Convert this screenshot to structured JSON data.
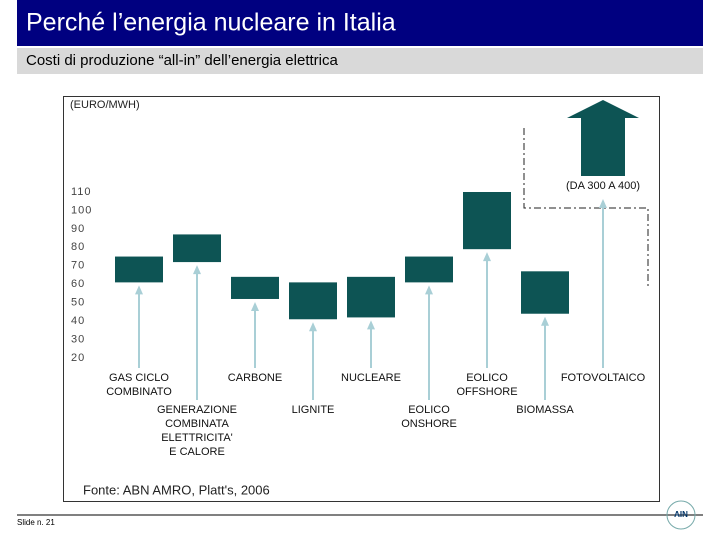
{
  "header": {
    "title": "Perché l’energia nucleare in Italia",
    "subtitle": "Costi di produzione “all-in” dell’energia elettrica"
  },
  "chart_data": {
    "type": "range-bar",
    "unit_label": "(EURO/MWH)",
    "categories": [
      [
        "GAS CICLO",
        "COMBINATO"
      ],
      [
        "GENERAZIONE",
        "COMBINATA",
        "ELETTRICITA'",
        "E CALORE"
      ],
      [
        "CARBONE"
      ],
      [
        "LIGNITE"
      ],
      [
        "NUCLEARE"
      ],
      [
        "EOLICO",
        "ONSHORE"
      ],
      [
        "EOLICO",
        "OFFSHORE"
      ],
      [
        "BIOMASSA"
      ],
      [
        "FOTOVOLTAICO"
      ]
    ],
    "ranges": [
      [
        61,
        75
      ],
      [
        72,
        87
      ],
      [
        52,
        64
      ],
      [
        41,
        61
      ],
      [
        42,
        64
      ],
      [
        61,
        75
      ],
      [
        79,
        110
      ],
      [
        44,
        67
      ],
      [
        300,
        400
      ]
    ],
    "annotation": "(DA 300 A 400)",
    "ylim": [
      20,
      110
    ],
    "yticks": [
      20,
      30,
      40,
      50,
      60,
      70,
      80,
      90,
      100,
      110
    ],
    "color": "#0d5454",
    "arrow_color": "#a9cfd6",
    "source": "Fonte: ABN AMRO, Platt's, 2006"
  },
  "footer": {
    "slide": "Slide n. 21",
    "logo": "AIN"
  }
}
